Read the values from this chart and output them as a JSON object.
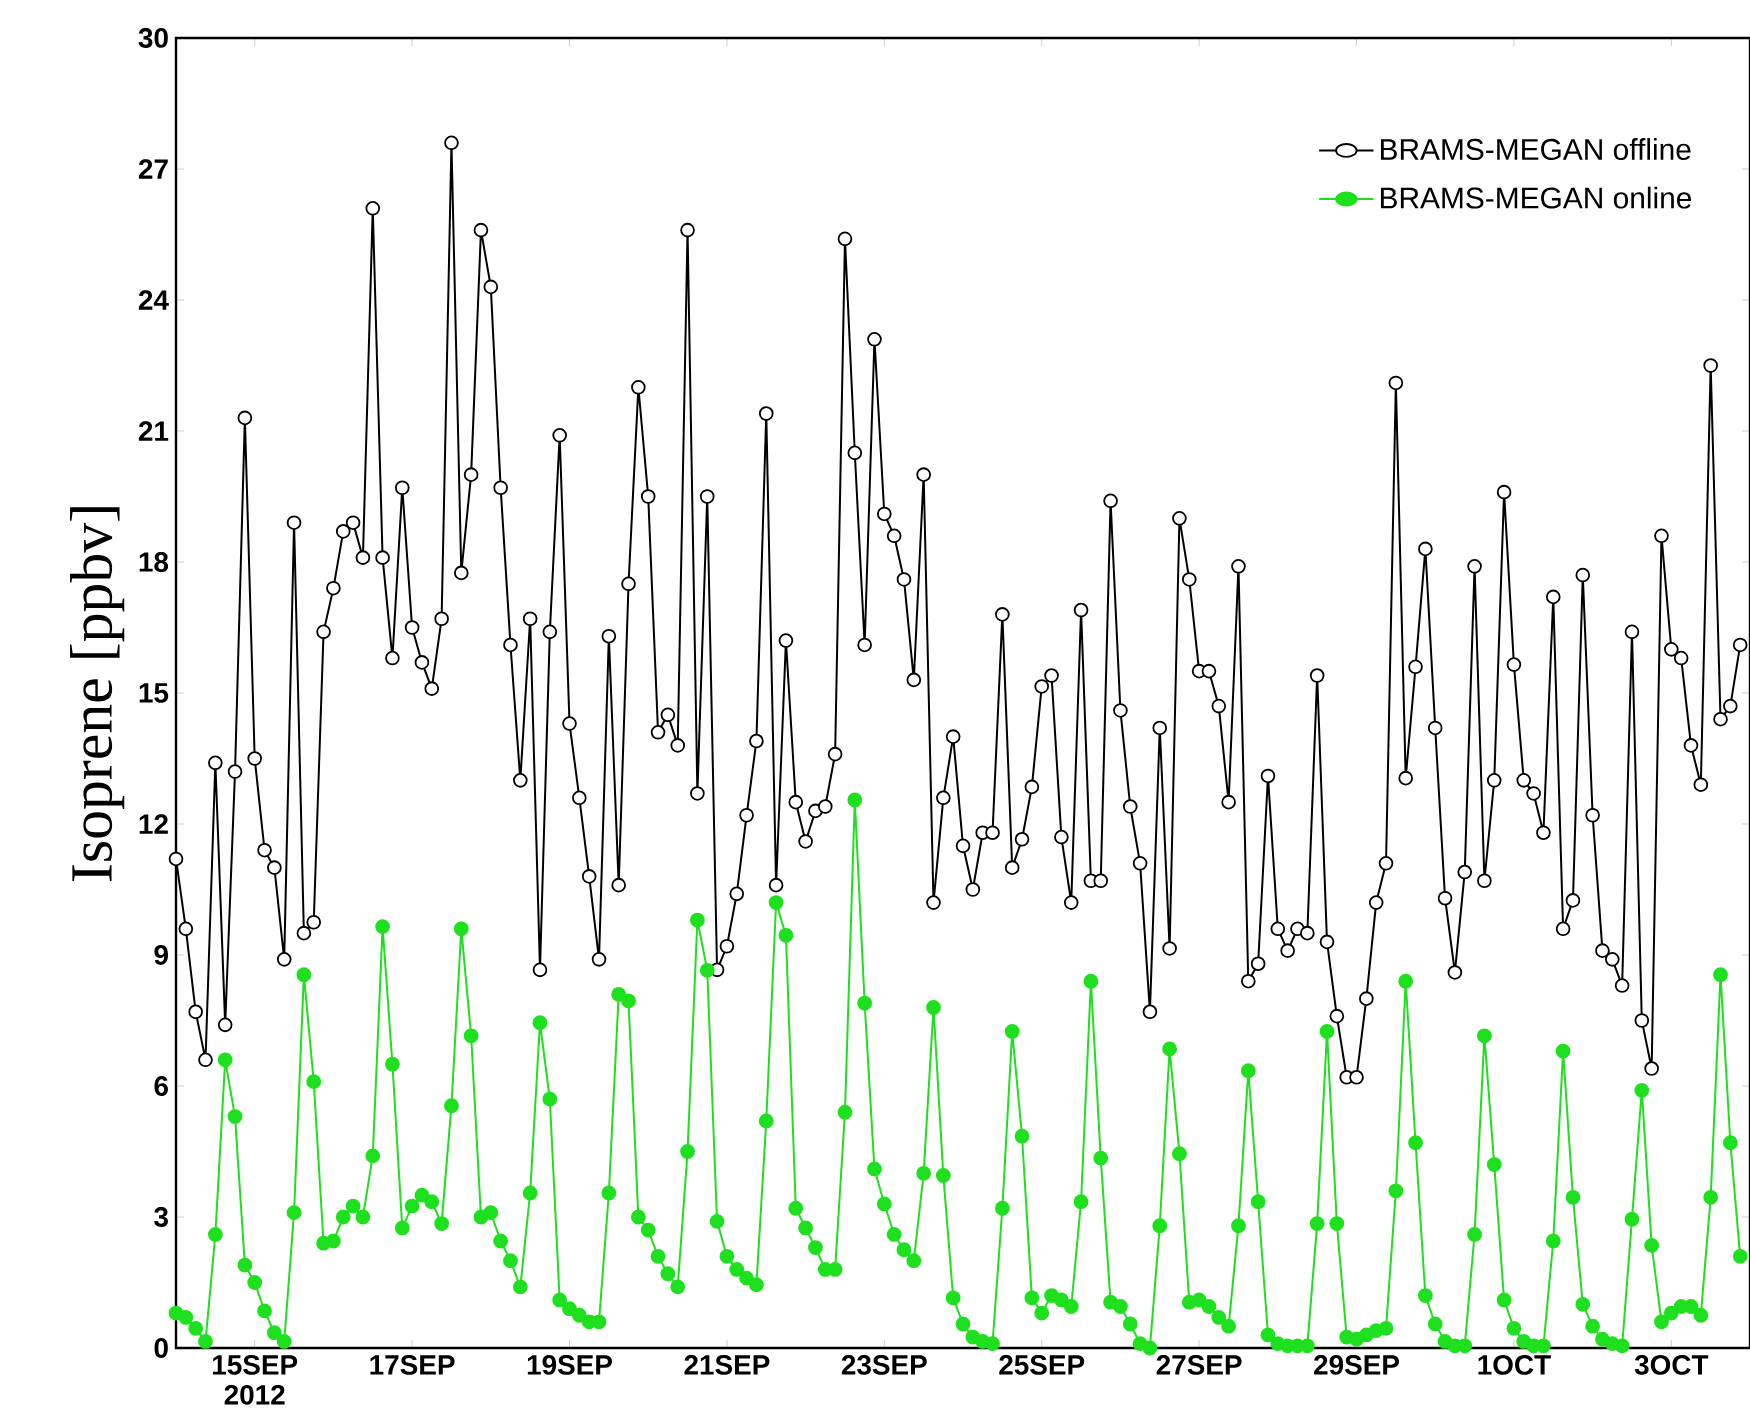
{
  "chart_data": {
    "type": "line",
    "ylabel": "Isoprene [ppbv]",
    "x": [
      "2012-09-14T00:00",
      "2012-09-14T03:00",
      "2012-09-14T06:00",
      "2012-09-14T09:00",
      "2012-09-14T12:00",
      "2012-09-14T15:00",
      "2012-09-14T18:00",
      "2012-09-14T21:00",
      "2012-09-15T00:00",
      "2012-09-15T03:00",
      "2012-09-15T06:00",
      "2012-09-15T09:00",
      "2012-09-15T12:00",
      "2012-09-15T15:00",
      "2012-09-15T18:00",
      "2012-09-15T21:00",
      "2012-09-16T00:00",
      "2012-09-16T03:00",
      "2012-09-16T06:00",
      "2012-09-16T09:00",
      "2012-09-16T12:00",
      "2012-09-16T15:00",
      "2012-09-16T18:00",
      "2012-09-16T21:00",
      "2012-09-17T00:00",
      "2012-09-17T03:00",
      "2012-09-17T06:00",
      "2012-09-17T09:00",
      "2012-09-17T12:00",
      "2012-09-17T15:00",
      "2012-09-17T18:00",
      "2012-09-17T21:00",
      "2012-09-18T00:00",
      "2012-09-18T03:00",
      "2012-09-18T06:00",
      "2012-09-18T09:00",
      "2012-09-18T12:00",
      "2012-09-18T15:00",
      "2012-09-18T18:00",
      "2012-09-18T21:00",
      "2012-09-19T00:00",
      "2012-09-19T03:00",
      "2012-09-19T06:00",
      "2012-09-19T09:00",
      "2012-09-19T12:00",
      "2012-09-19T15:00",
      "2012-09-19T18:00",
      "2012-09-19T21:00",
      "2012-09-20T00:00",
      "2012-09-20T03:00",
      "2012-09-20T06:00",
      "2012-09-20T09:00",
      "2012-09-20T12:00",
      "2012-09-20T15:00",
      "2012-09-20T18:00",
      "2012-09-20T21:00",
      "2012-09-21T00:00",
      "2012-09-21T03:00",
      "2012-09-21T06:00",
      "2012-09-21T09:00",
      "2012-09-21T12:00",
      "2012-09-21T15:00",
      "2012-09-21T18:00",
      "2012-09-21T21:00",
      "2012-09-22T00:00",
      "2012-09-22T03:00",
      "2012-09-22T06:00",
      "2012-09-22T09:00",
      "2012-09-22T12:00",
      "2012-09-22T15:00",
      "2012-09-22T18:00",
      "2012-09-22T21:00",
      "2012-09-23T00:00",
      "2012-09-23T03:00",
      "2012-09-23T06:00",
      "2012-09-23T09:00",
      "2012-09-23T12:00",
      "2012-09-23T15:00",
      "2012-09-23T18:00",
      "2012-09-23T21:00",
      "2012-09-24T00:00",
      "2012-09-24T03:00",
      "2012-09-24T06:00",
      "2012-09-24T09:00",
      "2012-09-24T12:00",
      "2012-09-24T15:00",
      "2012-09-24T18:00",
      "2012-09-24T21:00",
      "2012-09-25T00:00",
      "2012-09-25T03:00",
      "2012-09-25T06:00",
      "2012-09-25T09:00",
      "2012-09-25T12:00",
      "2012-09-25T15:00",
      "2012-09-25T18:00",
      "2012-09-25T21:00",
      "2012-09-26T00:00",
      "2012-09-26T03:00",
      "2012-09-26T06:00",
      "2012-09-26T09:00",
      "2012-09-26T12:00",
      "2012-09-26T15:00",
      "2012-09-26T18:00",
      "2012-09-26T21:00",
      "2012-09-27T00:00",
      "2012-09-27T03:00",
      "2012-09-27T06:00",
      "2012-09-27T09:00",
      "2012-09-27T12:00",
      "2012-09-27T15:00",
      "2012-09-27T18:00",
      "2012-09-27T21:00",
      "2012-09-28T00:00",
      "2012-09-28T03:00",
      "2012-09-28T06:00",
      "2012-09-28T09:00",
      "2012-09-28T12:00",
      "2012-09-28T15:00",
      "2012-09-28T18:00",
      "2012-09-28T21:00",
      "2012-09-29T00:00",
      "2012-09-29T03:00",
      "2012-09-29T06:00",
      "2012-09-29T09:00",
      "2012-09-29T12:00",
      "2012-09-29T15:00",
      "2012-09-29T18:00",
      "2012-09-29T21:00",
      "2012-09-30T00:00",
      "2012-09-30T03:00",
      "2012-09-30T06:00",
      "2012-09-30T09:00",
      "2012-09-30T12:00",
      "2012-09-30T15:00",
      "2012-09-30T18:00",
      "2012-09-30T21:00",
      "2012-10-01T00:00",
      "2012-10-01T03:00",
      "2012-10-01T06:00",
      "2012-10-01T09:00",
      "2012-10-01T12:00",
      "2012-10-01T15:00",
      "2012-10-01T18:00",
      "2012-10-01T21:00",
      "2012-10-02T00:00",
      "2012-10-02T03:00",
      "2012-10-02T06:00",
      "2012-10-02T09:00",
      "2012-10-02T12:00",
      "2012-10-02T15:00",
      "2012-10-02T18:00",
      "2012-10-02T21:00",
      "2012-10-03T00:00",
      "2012-10-03T03:00",
      "2012-10-03T06:00",
      "2012-10-03T09:00",
      "2012-10-03T12:00",
      "2012-10-03T15:00",
      "2012-10-03T18:00",
      "2012-10-03T21:00"
    ],
    "series": [
      {
        "name": "BRAMS-MEGAN offline",
        "color": "#000000",
        "values": [
          11.2,
          9.6,
          7.7,
          6.6,
          13.4,
          7.4,
          13.2,
          21.3,
          13.5,
          11.4,
          11.0,
          8.9,
          18.9,
          9.5,
          9.75,
          16.4,
          17.4,
          18.7,
          18.9,
          18.1,
          26.1,
          18.1,
          15.8,
          19.7,
          16.5,
          15.7,
          15.1,
          16.7,
          27.6,
          17.75,
          20.0,
          25.6,
          24.3,
          19.7,
          16.1,
          13.0,
          16.7,
          8.66,
          16.4,
          20.9,
          14.3,
          12.6,
          10.8,
          8.9,
          16.3,
          10.6,
          17.5,
          22.0,
          19.5,
          14.1,
          14.5,
          13.8,
          25.6,
          12.7,
          19.5,
          8.66,
          9.2,
          10.4,
          12.2,
          13.9,
          21.4,
          10.6,
          16.2,
          12.5,
          11.6,
          12.3,
          12.4,
          13.6,
          25.4,
          20.5,
          16.1,
          23.1,
          19.1,
          18.6,
          17.6,
          15.3,
          20.0,
          10.2,
          12.6,
          14.0,
          11.5,
          10.5,
          11.8,
          11.8,
          16.8,
          11.0,
          11.65,
          12.85,
          15.15,
          15.4,
          11.7,
          10.2,
          16.9,
          10.7,
          10.7,
          19.4,
          14.6,
          12.4,
          11.1,
          7.7,
          14.2,
          9.15,
          19.0,
          17.6,
          15.5,
          15.5,
          14.7,
          12.5,
          17.9,
          8.4,
          8.8,
          13.1,
          9.6,
          9.1,
          9.6,
          9.5,
          15.4,
          9.3,
          7.6,
          6.2,
          6.2,
          8.0,
          10.2,
          11.1,
          22.1,
          13.05,
          15.6,
          18.3,
          14.2,
          10.3,
          8.6,
          10.9,
          17.9,
          10.7,
          13.0,
          19.6,
          15.65,
          13.0,
          12.7,
          11.8,
          17.2,
          9.6,
          10.25,
          17.7,
          12.2,
          9.1,
          8.9,
          8.3,
          16.4,
          7.5,
          6.4,
          18.6,
          16.0,
          15.8,
          13.8,
          12.9,
          22.5,
          14.4,
          14.7,
          16.1
        ]
      },
      {
        "name": "BRAMS-MEGAN online",
        "color": "#1ee01e",
        "values": [
          0.8,
          0.7,
          0.45,
          0.15,
          2.6,
          6.6,
          5.3,
          1.9,
          1.5,
          0.85,
          0.35,
          0.15,
          3.1,
          8.55,
          6.1,
          2.4,
          2.45,
          3.0,
          3.25,
          3.0,
          4.4,
          9.65,
          6.5,
          2.75,
          3.25,
          3.5,
          3.35,
          2.85,
          5.55,
          9.6,
          7.15,
          3.0,
          3.1,
          2.45,
          2.0,
          1.4,
          3.55,
          7.45,
          5.7,
          1.1,
          0.9,
          0.75,
          0.6,
          0.6,
          3.55,
          8.1,
          7.95,
          3.0,
          2.7,
          2.1,
          1.7,
          1.4,
          4.5,
          9.8,
          8.65,
          2.9,
          2.1,
          1.8,
          1.6,
          1.45,
          5.2,
          10.2,
          9.45,
          3.2,
          2.75,
          2.3,
          1.8,
          1.8,
          5.4,
          12.55,
          7.9,
          4.1,
          3.3,
          2.6,
          2.25,
          2.0,
          4.0,
          7.8,
          3.95,
          1.15,
          0.55,
          0.25,
          0.15,
          0.1,
          3.2,
          7.25,
          4.85,
          1.15,
          0.8,
          1.2,
          1.1,
          0.95,
          3.35,
          8.4,
          4.35,
          1.05,
          0.95,
          0.55,
          0.1,
          0,
          2.8,
          6.85,
          4.45,
          1.05,
          1.1,
          0.95,
          0.7,
          0.5,
          2.8,
          6.35,
          3.35,
          0.3,
          0.1,
          0.05,
          0.05,
          0.05,
          2.85,
          7.25,
          2.85,
          0.25,
          0.2,
          0.3,
          0.4,
          0.45,
          3.6,
          8.4,
          4.7,
          1.2,
          0.55,
          0.15,
          0.05,
          0.05,
          2.6,
          7.15,
          4.2,
          1.1,
          0.45,
          0.15,
          0.05,
          0.05,
          2.45,
          6.8,
          3.45,
          1.0,
          0.5,
          0.2,
          0.1,
          0.05,
          2.95,
          5.9,
          2.35,
          0.6,
          0.8,
          0.95,
          0.95,
          0.75,
          3.45,
          8.55,
          4.7,
          2.1
        ]
      }
    ],
    "xlim": [
      "2012-09-14T00:00",
      "2012-10-04T00:00"
    ],
    "xticks": [
      {
        "value": "2012-09-15",
        "label": "15SEP 2012"
      },
      {
        "value": "2012-09-17",
        "label": "17SEP"
      },
      {
        "value": "2012-09-19",
        "label": "19SEP"
      },
      {
        "value": "2012-09-21",
        "label": "21SEP"
      },
      {
        "value": "2012-09-23",
        "label": "23SEP"
      },
      {
        "value": "2012-09-25",
        "label": "25SEP"
      },
      {
        "value": "2012-09-27",
        "label": "27SEP"
      },
      {
        "value": "2012-09-29",
        "label": "29SEP"
      },
      {
        "value": "2012-10-01",
        "label": "1OCT"
      },
      {
        "value": "2012-10-03",
        "label": "3OCT"
      }
    ],
    "ylim": [
      0,
      30
    ],
    "yticks": [
      0,
      3,
      6,
      9,
      12,
      15,
      18,
      21,
      24,
      27,
      30
    ],
    "grid": false,
    "legend": "top right",
    "marker": "circle",
    "line_style": "solid"
  }
}
